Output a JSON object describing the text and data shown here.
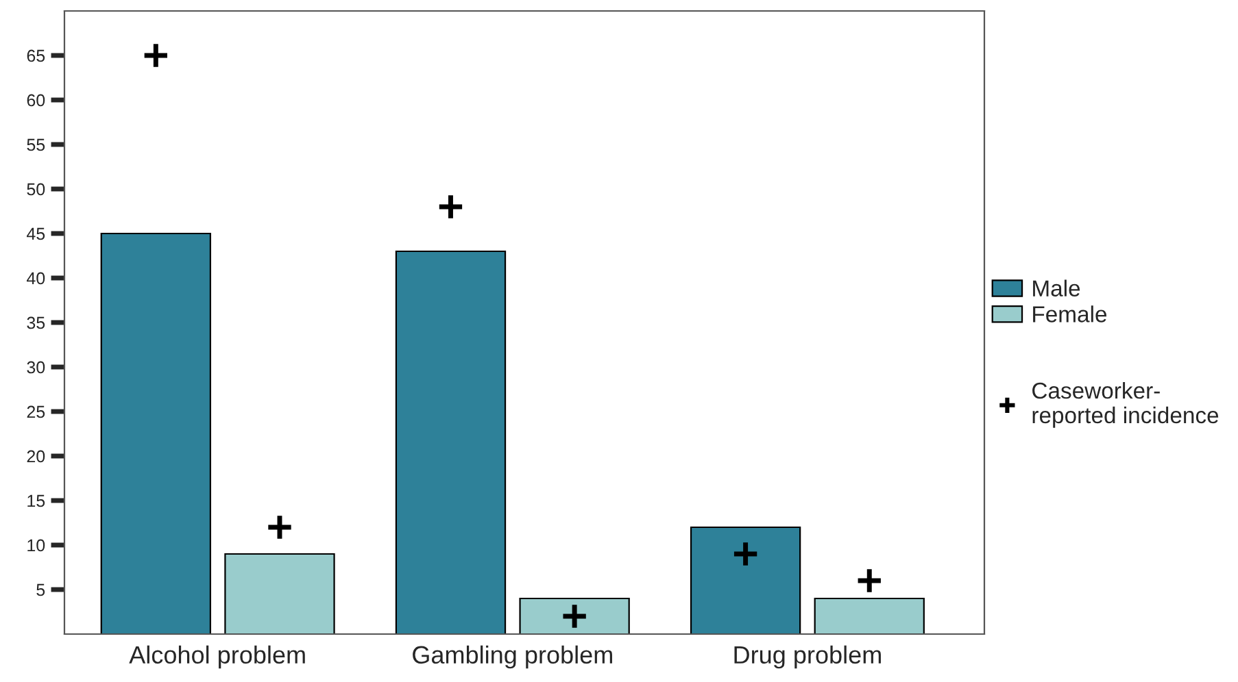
{
  "chart_data": {
    "type": "bar",
    "categories": [
      "Alcohol problem",
      "Gambling problem",
      "Drug problem"
    ],
    "series": [
      {
        "name": "Male",
        "color": "#2e8199",
        "values": [
          45,
          43,
          12
        ]
      },
      {
        "name": "Female",
        "color": "#99cccc",
        "values": [
          9,
          4,
          4
        ]
      },
      {
        "name": "Caseworker-\nreported incidence",
        "type": "scatter",
        "color": "#000000",
        "marker": "cross",
        "x": [
          "Alcohol problem",
          "Alcohol problem",
          "Gambling problem",
          "Gambling problem",
          "Drug problem",
          "Drug problem"
        ],
        "values": [
          65,
          12,
          48,
          2,
          9,
          6
        ]
      }
    ],
    "ylim": [
      0,
      70
    ],
    "yticks": [
      5,
      10,
      15,
      20,
      25,
      30,
      35,
      40,
      45,
      50,
      55,
      60,
      65
    ],
    "grid": false,
    "legend": "right"
  }
}
